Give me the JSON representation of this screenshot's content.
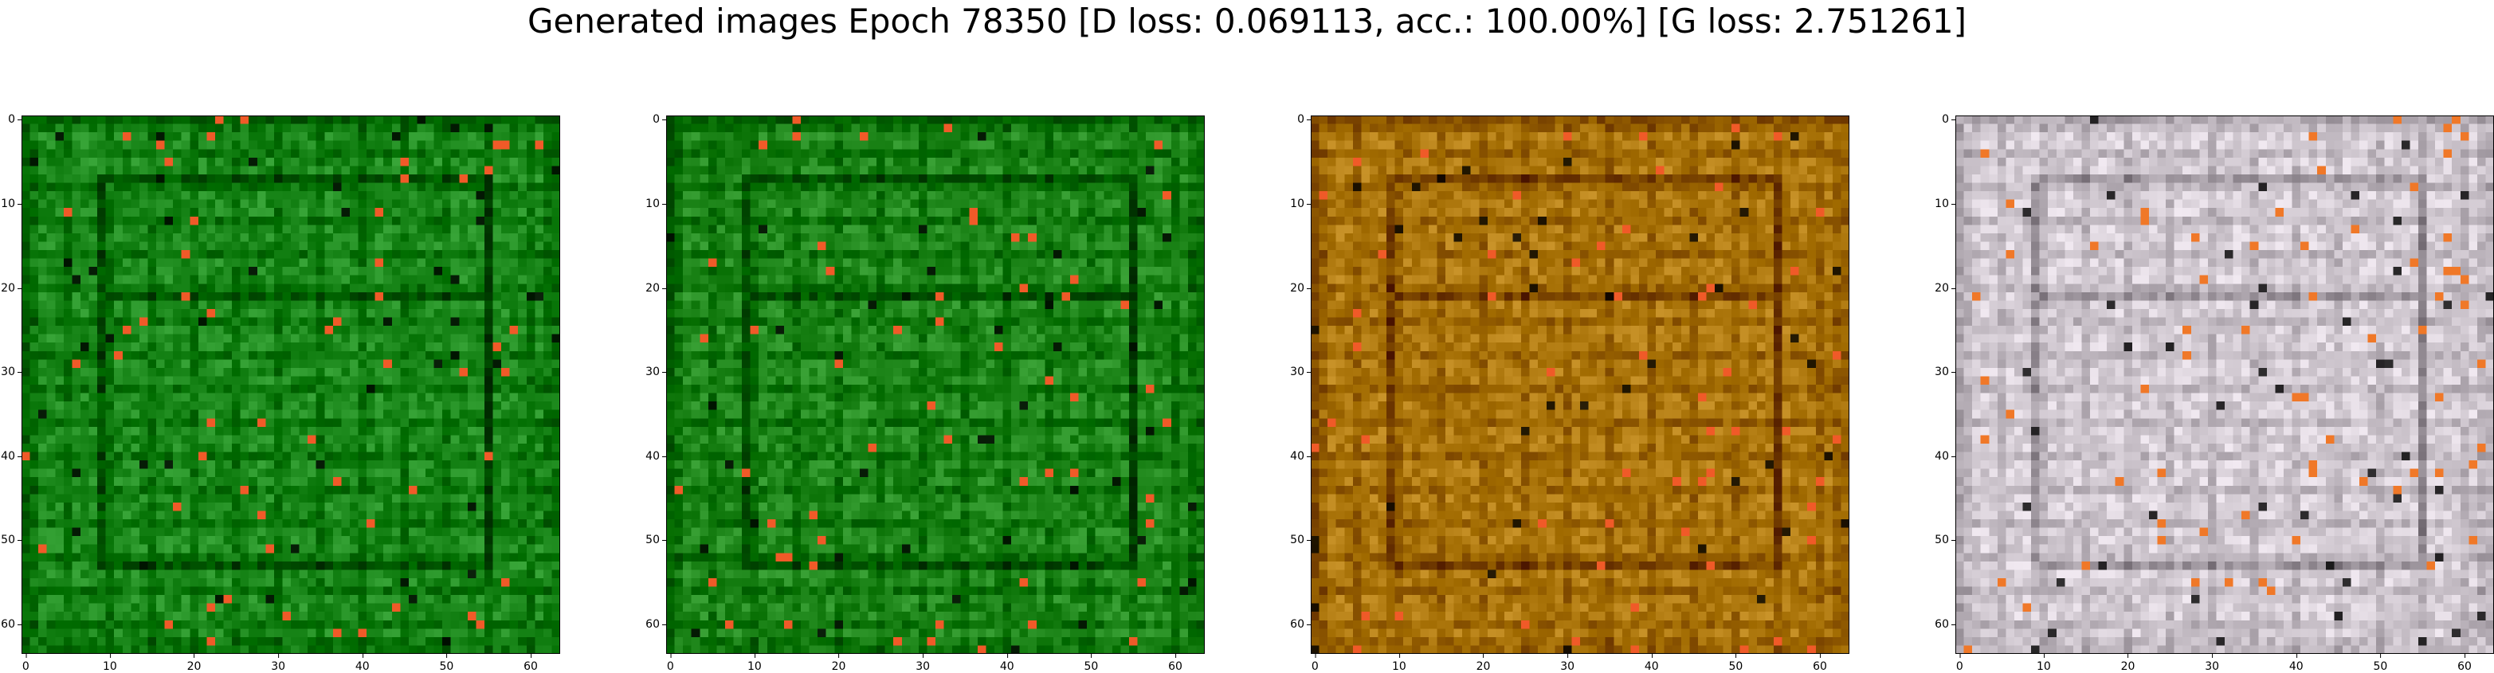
{
  "figure": {
    "title": "Generated images Epoch 78350 [D loss: 0.069113, acc.: 100.00%] [G loss: 2.751261]"
  },
  "chart_data": [
    {
      "type": "heatmap",
      "xlim": [
        -0.5,
        63.5
      ],
      "ylim": [
        63.5,
        -0.5
      ],
      "xticks": [
        0,
        10,
        20,
        30,
        40,
        50,
        60
      ],
      "yticks": [
        0,
        10,
        20,
        30,
        40,
        50,
        60
      ],
      "base_color": "#1f8c1f",
      "grid": false
    },
    {
      "type": "heatmap",
      "xlim": [
        -0.5,
        63.5
      ],
      "ylim": [
        63.5,
        -0.5
      ],
      "xticks": [
        0,
        10,
        20,
        30,
        40,
        50,
        60
      ],
      "yticks": [
        0,
        10,
        20,
        30,
        40,
        50,
        60
      ],
      "base_color": "#228a1e",
      "grid": false
    },
    {
      "type": "heatmap",
      "xlim": [
        -0.5,
        63.5
      ],
      "ylim": [
        63.5,
        -0.5
      ],
      "xticks": [
        0,
        10,
        20,
        30,
        40,
        50,
        60
      ],
      "yticks": [
        0,
        10,
        20,
        30,
        40,
        50,
        60
      ],
      "base_color": "#b07a10",
      "grid": false
    },
    {
      "type": "heatmap",
      "xlim": [
        -0.5,
        63.5
      ],
      "ylim": [
        63.5,
        -0.5
      ],
      "xticks": [
        0,
        10,
        20,
        30,
        40,
        50,
        60
      ],
      "yticks": [
        0,
        10,
        20,
        30,
        40,
        50,
        60
      ],
      "base_color": "#d8d0d8",
      "grid": false
    }
  ]
}
